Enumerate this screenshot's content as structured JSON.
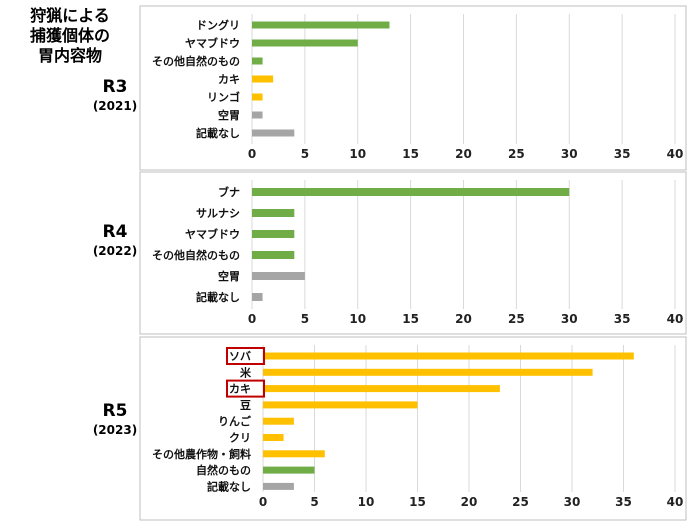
{
  "title": {
    "line1": "狩猟による",
    "line2": "捕獲個体の",
    "line3": "胃内容物"
  },
  "colors": {
    "natural": "#70ad47",
    "crop": "#ffc000",
    "other": "#a5a5a5",
    "highlight": "#c00000",
    "grid": "#d9d9d9",
    "border": "#bfbfbf"
  },
  "chart_data": [
    {
      "type": "bar",
      "orientation": "horizontal",
      "label": "R3",
      "year": "(2021)",
      "xlim": [
        0,
        40
      ],
      "ticks": [
        "0",
        "5",
        "10",
        "15",
        "20",
        "25",
        "30",
        "35",
        "40"
      ],
      "categories": [
        "ドングリ",
        "ヤマブドウ",
        "その他自然のもの",
        "カキ",
        "リンゴ",
        "空胃",
        "記載なし"
      ],
      "values": [
        13,
        10,
        1,
        2,
        1,
        1,
        4
      ],
      "groups": [
        "natural",
        "natural",
        "natural",
        "crop",
        "crop",
        "other",
        "other"
      ]
    },
    {
      "type": "bar",
      "orientation": "horizontal",
      "label": "R4",
      "year": "(2022)",
      "xlim": [
        0,
        40
      ],
      "ticks": [
        "0",
        "5",
        "10",
        "15",
        "20",
        "25",
        "30",
        "35",
        "40"
      ],
      "categories": [
        "ブナ",
        "サルナシ",
        "ヤマブドウ",
        "その他自然のもの",
        "空胃",
        "記載なし"
      ],
      "values": [
        30,
        4,
        4,
        4,
        5,
        1
      ],
      "groups": [
        "natural",
        "natural",
        "natural",
        "natural",
        "other",
        "other"
      ]
    },
    {
      "type": "bar",
      "orientation": "horizontal",
      "label": "R5",
      "year": "(2023)",
      "xlim": [
        0,
        40
      ],
      "ticks": [
        "0",
        "5",
        "10",
        "15",
        "20",
        "25",
        "30",
        "35",
        "40"
      ],
      "categories": [
        "ソバ",
        "米",
        "カキ",
        "豆",
        "りんご",
        "クリ",
        "その他農作物・飼料",
        "自然のもの",
        "記載なし"
      ],
      "values": [
        36,
        32,
        23,
        15,
        3,
        2,
        6,
        5,
        3
      ],
      "groups": [
        "crop",
        "crop",
        "crop",
        "crop",
        "crop",
        "crop",
        "crop",
        "natural",
        "other"
      ],
      "highlighted": [
        "ソバ",
        "カキ"
      ]
    }
  ]
}
